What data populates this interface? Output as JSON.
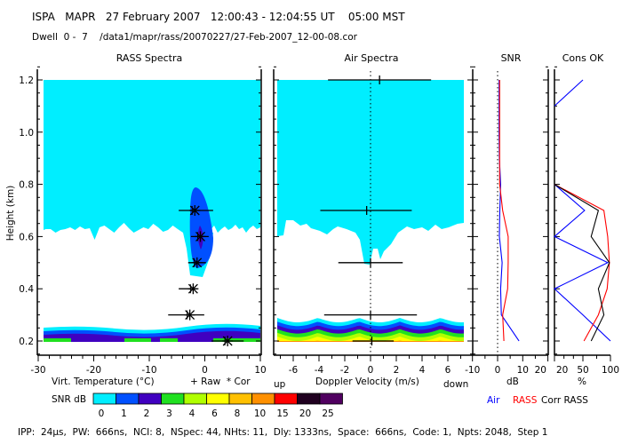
{
  "header": {
    "line1": "ISPA   MAPR   27 February 2007   12:00:43 - 12:04:55 UT    05:00 MST",
    "line2": "Dwell  0 -  7    /data1/mapr/rass/20070227/27-Feb-2007_12-00-08.cor"
  },
  "footer": "IPP:  24µs,  PW:  666ns,  NCI: 8,  NSpec: 44, NHts: 11,  Dly: 1333ns,  Space:  666ns,  Code: 1,  Npts: 2048,  Step 1",
  "colorbar": {
    "label": "SNR dB",
    "levels": [
      "0",
      "1",
      "2",
      "3",
      "4",
      "6",
      "8",
      "10",
      "15",
      "20",
      "25"
    ],
    "colors": [
      "#00eeff",
      "#0050ff",
      "#4000c0",
      "#20e020",
      "#b0ff00",
      "#ffff00",
      "#ffc000",
      "#ff9000",
      "#ff0000",
      "#200020",
      "#500060"
    ]
  },
  "chart_data": [
    {
      "type": "scatter",
      "title": "RASS Spectra",
      "ylabel": "Height (km)",
      "xlabel": "Virt. Temperature (°C)",
      "legend": "+ Raw  * Cor",
      "xlim": [
        -30,
        10
      ],
      "ylim": [
        0.15,
        1.24
      ],
      "xticks": [
        "-30",
        "-20",
        "-10",
        "0",
        "10"
      ],
      "yticks": [
        "0.2",
        "0.4",
        "0.6",
        "0.8",
        "1.0",
        "1.2"
      ],
      "points": [
        {
          "h": 0.7,
          "v": -1.8,
          "lo": -4.7,
          "hi": 1.5
        },
        {
          "h": 0.6,
          "v": -0.8,
          "lo": -2.5,
          "hi": 0.7
        },
        {
          "h": 0.5,
          "v": -1.4,
          "lo": -3.0,
          "hi": 0.2
        },
        {
          "h": 0.4,
          "v": -2.1,
          "lo": -4.7,
          "hi": -1.4
        },
        {
          "h": 0.3,
          "v": -2.7,
          "lo": -6.6,
          "hi": -0.1
        },
        {
          "h": 0.2,
          "v": 4.1,
          "lo": 1.2,
          "hi": 7.0
        }
      ]
    },
    {
      "type": "scatter",
      "title": "Air Spectra",
      "xlabel": "Doppler Velocity (m/s)",
      "xlabel_left": "up",
      "xlabel_right": "down",
      "xlim": [
        -7.5,
        7.9
      ],
      "xticks": [
        "-6",
        "-4",
        "-2",
        "0",
        "2",
        "4",
        "6"
      ],
      "points": [
        {
          "h": 1.2,
          "v": 0.7,
          "lo": -3.3,
          "hi": 4.7
        },
        {
          "h": 0.7,
          "v": -0.3,
          "lo": -3.9,
          "hi": 3.2
        },
        {
          "h": 0.5,
          "v": 0.0,
          "lo": -2.5,
          "hi": 2.5
        },
        {
          "h": 0.3,
          "v": 0.0,
          "lo": -3.6,
          "hi": 3.6
        },
        {
          "h": 0.2,
          "v": 0.1,
          "lo": -1.4,
          "hi": 1.8
        }
      ]
    },
    {
      "type": "line",
      "title": "SNR",
      "xlabel": "dB",
      "xlim": [
        -10,
        20
      ],
      "xticks": [
        "-10",
        "0",
        "10",
        "20"
      ],
      "heights": [
        0.2,
        0.3,
        0.4,
        0.5,
        0.6,
        0.7,
        0.8,
        0.9,
        1.0,
        1.1,
        1.2
      ],
      "series": [
        {
          "name": "Air",
          "color": "#0000ff",
          "values": [
            8.5,
            1.5,
            1.2,
            1.8,
            0.7,
            0.9,
            1.2,
            0.7,
            0.6,
            0.6,
            0.6
          ]
        },
        {
          "name": "RASS",
          "color": "#ff0000",
          "values": [
            2.5,
            2.0,
            4.0,
            4.2,
            4.2,
            2.0,
            0.8,
            0.8,
            0.8,
            0.8,
            0.8
          ]
        }
      ]
    },
    {
      "type": "line",
      "title": "Cons OK",
      "xlabel": "%",
      "xticks": [
        "20",
        "50",
        "100"
      ],
      "series": [
        {
          "name": "Air",
          "color": "#0000ff",
          "heights": [
            0.2,
            0.3,
            0.4,
            0.5,
            0.6,
            0.7,
            0.8
          ],
          "values": [
            100,
            50,
            20,
            95,
            20,
            53,
            20
          ],
          "extra": {
            "heights": [
              1.1,
              1.2
            ],
            "values": [
              20,
              50
            ]
          }
        },
        {
          "name": "RASS",
          "color": "#ff0000",
          "heights": [
            0.2,
            0.3,
            0.4,
            0.5,
            0.6,
            0.7,
            0.8
          ],
          "values": [
            52,
            78,
            94,
            98,
            95,
            88,
            20
          ]
        },
        {
          "name": "Corr RASS",
          "color": "#000000",
          "heights": [
            0.2,
            0.3,
            0.4,
            0.5,
            0.6,
            0.7,
            0.8
          ],
          "values": [
            65,
            88,
            78,
            98,
            65,
            78,
            20
          ]
        }
      ]
    }
  ]
}
